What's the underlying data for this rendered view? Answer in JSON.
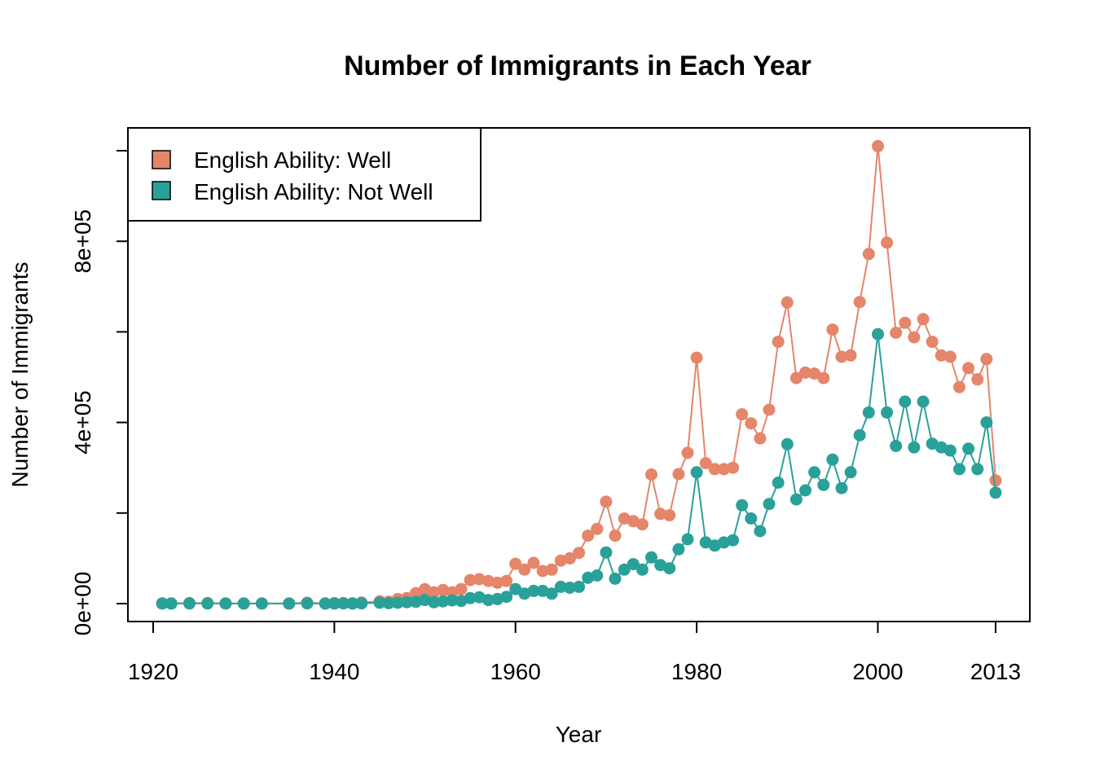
{
  "chart_data": {
    "type": "line",
    "title": "Number of Immigrants in Each Year",
    "xlabel": "Year",
    "ylabel": "Number of Immigrants",
    "xlim": [
      1920,
      2013
    ],
    "ylim": [
      0,
      1000000
    ],
    "x_ticks": [
      1920,
      1940,
      1960,
      1980,
      2000,
      2013
    ],
    "x_tick_labels": [
      "1920",
      "1940",
      "1960",
      "1980",
      "2000",
      "2013"
    ],
    "y_ticks": [
      0,
      200000,
      400000,
      600000,
      800000,
      1000000
    ],
    "y_tick_labels": [
      "0e+00",
      "",
      "4e+05",
      "",
      "8e+05",
      ""
    ],
    "legend_position": "top-left",
    "grid": false,
    "series": [
      {
        "name": "English Ability: Well",
        "color": "#E5856A",
        "points": [
          [
            1921,
            500
          ],
          [
            1922,
            300
          ],
          [
            1924,
            1000
          ],
          [
            1926,
            1200
          ],
          [
            1928,
            600
          ],
          [
            1930,
            400
          ],
          [
            1932,
            200
          ],
          [
            1935,
            200
          ],
          [
            1937,
            2000
          ],
          [
            1939,
            400
          ],
          [
            1940,
            1000
          ],
          [
            1941,
            1000
          ],
          [
            1942,
            800
          ],
          [
            1943,
            2500
          ],
          [
            1945,
            5000
          ],
          [
            1946,
            4000
          ],
          [
            1947,
            10000
          ],
          [
            1948,
            12000
          ],
          [
            1949,
            23000
          ],
          [
            1950,
            32000
          ],
          [
            1951,
            25000
          ],
          [
            1952,
            30000
          ],
          [
            1953,
            25000
          ],
          [
            1954,
            32000
          ],
          [
            1955,
            52000
          ],
          [
            1956,
            54000
          ],
          [
            1957,
            50000
          ],
          [
            1958,
            46000
          ],
          [
            1959,
            50000
          ],
          [
            1960,
            88000
          ],
          [
            1961,
            75000
          ],
          [
            1962,
            90000
          ],
          [
            1963,
            72000
          ],
          [
            1964,
            75000
          ],
          [
            1965,
            95000
          ],
          [
            1966,
            100000
          ],
          [
            1967,
            112000
          ],
          [
            1968,
            150000
          ],
          [
            1969,
            165000
          ],
          [
            1970,
            225000
          ],
          [
            1971,
            150000
          ],
          [
            1972,
            188000
          ],
          [
            1973,
            182000
          ],
          [
            1974,
            175000
          ],
          [
            1975,
            285000
          ],
          [
            1976,
            198000
          ],
          [
            1977,
            195000
          ],
          [
            1978,
            286000
          ],
          [
            1979,
            333000
          ],
          [
            1980,
            543000
          ],
          [
            1981,
            310000
          ],
          [
            1982,
            297000
          ],
          [
            1983,
            297000
          ],
          [
            1984,
            300000
          ],
          [
            1985,
            418000
          ],
          [
            1986,
            398000
          ],
          [
            1987,
            365000
          ],
          [
            1988,
            428000
          ],
          [
            1989,
            578000
          ],
          [
            1990,
            665000
          ],
          [
            1991,
            498000
          ],
          [
            1992,
            510000
          ],
          [
            1993,
            508000
          ],
          [
            1994,
            498000
          ],
          [
            1995,
            605000
          ],
          [
            1996,
            545000
          ],
          [
            1997,
            548000
          ],
          [
            1998,
            666000
          ],
          [
            1999,
            772000
          ],
          [
            2000,
            1010000
          ],
          [
            2001,
            797000
          ],
          [
            2002,
            598000
          ],
          [
            2003,
            620000
          ],
          [
            2004,
            588000
          ],
          [
            2005,
            628000
          ],
          [
            2006,
            578000
          ],
          [
            2007,
            548000
          ],
          [
            2008,
            545000
          ],
          [
            2009,
            478000
          ],
          [
            2010,
            520000
          ],
          [
            2011,
            495000
          ],
          [
            2012,
            540000
          ],
          [
            2013,
            272000
          ]
        ]
      },
      {
        "name": "English Ability: Not Well",
        "color": "#2AA198",
        "points": [
          [
            1921,
            100
          ],
          [
            1922,
            100
          ],
          [
            1924,
            300
          ],
          [
            1926,
            300
          ],
          [
            1928,
            100
          ],
          [
            1930,
            100
          ],
          [
            1932,
            100
          ],
          [
            1935,
            100
          ],
          [
            1937,
            500
          ],
          [
            1939,
            100
          ],
          [
            1940,
            200
          ],
          [
            1941,
            300
          ],
          [
            1942,
            200
          ],
          [
            1943,
            500
          ],
          [
            1945,
            2000
          ],
          [
            1946,
            1000
          ],
          [
            1947,
            2000
          ],
          [
            1948,
            3000
          ],
          [
            1949,
            4000
          ],
          [
            1950,
            8000
          ],
          [
            1951,
            3000
          ],
          [
            1952,
            5000
          ],
          [
            1953,
            7000
          ],
          [
            1954,
            6000
          ],
          [
            1955,
            12000
          ],
          [
            1956,
            14000
          ],
          [
            1957,
            8000
          ],
          [
            1958,
            10000
          ],
          [
            1959,
            15000
          ],
          [
            1960,
            32000
          ],
          [
            1961,
            22000
          ],
          [
            1962,
            28000
          ],
          [
            1963,
            28000
          ],
          [
            1964,
            22000
          ],
          [
            1965,
            37000
          ],
          [
            1966,
            35000
          ],
          [
            1967,
            37000
          ],
          [
            1968,
            57000
          ],
          [
            1969,
            62000
          ],
          [
            1970,
            113000
          ],
          [
            1971,
            55000
          ],
          [
            1972,
            75000
          ],
          [
            1973,
            87000
          ],
          [
            1974,
            75000
          ],
          [
            1975,
            102000
          ],
          [
            1976,
            85000
          ],
          [
            1977,
            78000
          ],
          [
            1978,
            120000
          ],
          [
            1979,
            142000
          ],
          [
            1980,
            290000
          ],
          [
            1981,
            135000
          ],
          [
            1982,
            128000
          ],
          [
            1983,
            135000
          ],
          [
            1984,
            140000
          ],
          [
            1985,
            217000
          ],
          [
            1986,
            188000
          ],
          [
            1987,
            160000
          ],
          [
            1988,
            220000
          ],
          [
            1989,
            267000
          ],
          [
            1990,
            352000
          ],
          [
            1991,
            230000
          ],
          [
            1992,
            250000
          ],
          [
            1993,
            290000
          ],
          [
            1994,
            262000
          ],
          [
            1995,
            318000
          ],
          [
            1996,
            255000
          ],
          [
            1997,
            290000
          ],
          [
            1998,
            372000
          ],
          [
            1999,
            422000
          ],
          [
            2000,
            595000
          ],
          [
            2001,
            422000
          ],
          [
            2002,
            348000
          ],
          [
            2003,
            446000
          ],
          [
            2004,
            345000
          ],
          [
            2005,
            446000
          ],
          [
            2006,
            353000
          ],
          [
            2007,
            345000
          ],
          [
            2008,
            338000
          ],
          [
            2009,
            297000
          ],
          [
            2010,
            342000
          ],
          [
            2011,
            297000
          ],
          [
            2012,
            400000
          ],
          [
            2013,
            245000
          ]
        ]
      }
    ]
  }
}
